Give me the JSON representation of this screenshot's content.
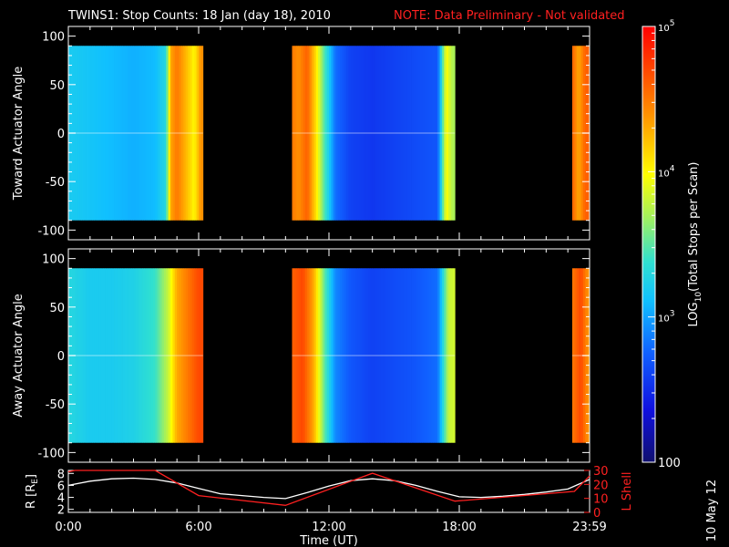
{
  "title": "TWINS1: Stop Counts: 18 Jan (day  18), 2010",
  "note": "NOTE: Data Preliminary - Not validated",
  "date_stamp": "10 May 12",
  "colors": {
    "background": "#000000",
    "axes": "#ffffff",
    "note": "#ff2020",
    "r_line": "#ffffff",
    "l_line": "#ff2020"
  },
  "chart_data": [
    {
      "type": "heatmap",
      "ylabel": "Toward Actuator Angle",
      "yticks": [
        "100",
        "50",
        "0",
        "-50",
        "-100"
      ],
      "ylim": [
        -110,
        110
      ],
      "angle_range": [
        -90,
        90
      ],
      "x_range_hours": [
        0,
        24
      ],
      "data_segments_hours": [
        [
          0.0,
          6.2
        ],
        [
          10.3,
          17.8
        ],
        [
          23.2,
          24.0
        ]
      ],
      "colorbar_scale": "log10",
      "time_profile": [
        {
          "t": 0.0,
          "log": 3.2
        },
        {
          "t": 1.0,
          "log": 3.15
        },
        {
          "t": 2.0,
          "log": 3.1
        },
        {
          "t": 3.0,
          "log": 3.05
        },
        {
          "t": 4.0,
          "log": 3.1
        },
        {
          "t": 4.5,
          "log": 3.3
        },
        {
          "t": 4.7,
          "log": 4.3
        },
        {
          "t": 5.0,
          "log": 4.5
        },
        {
          "t": 5.5,
          "log": 4.2
        },
        {
          "t": 5.8,
          "log": 4.0
        },
        {
          "t": 6.1,
          "log": 4.4
        },
        {
          "t": 10.3,
          "log": 4.5
        },
        {
          "t": 10.6,
          "log": 4.4
        },
        {
          "t": 11.0,
          "log": 4.6
        },
        {
          "t": 11.4,
          "log": 4.1
        },
        {
          "t": 11.7,
          "log": 3.6
        },
        {
          "t": 12.0,
          "log": 3.2
        },
        {
          "t": 12.3,
          "log": 2.8
        },
        {
          "t": 13.0,
          "log": 2.6
        },
        {
          "t": 14.0,
          "log": 2.55
        },
        {
          "t": 15.0,
          "log": 2.6
        },
        {
          "t": 16.0,
          "log": 2.65
        },
        {
          "t": 17.0,
          "log": 2.7
        },
        {
          "t": 17.4,
          "log": 4.0
        },
        {
          "t": 17.7,
          "log": 3.7
        },
        {
          "t": 23.2,
          "log": 4.6
        },
        {
          "t": 23.5,
          "log": 4.3
        },
        {
          "t": 23.8,
          "log": 4.6
        }
      ]
    },
    {
      "type": "heatmap",
      "ylabel": "Away Actuator Angle",
      "yticks": [
        "100",
        "50",
        "0",
        "-50",
        "-100"
      ],
      "ylim": [
        -110,
        110
      ],
      "angle_range": [
        -90,
        90
      ],
      "x_range_hours": [
        0,
        24
      ],
      "data_segments_hours": [
        [
          0.0,
          6.2
        ],
        [
          10.3,
          17.8
        ],
        [
          23.2,
          24.0
        ]
      ],
      "colorbar_scale": "log10",
      "time_profile": [
        {
          "t": 0.0,
          "log": 3.3
        },
        {
          "t": 1.0,
          "log": 3.2
        },
        {
          "t": 2.0,
          "log": 3.2
        },
        {
          "t": 3.0,
          "log": 3.25
        },
        {
          "t": 4.0,
          "log": 3.4
        },
        {
          "t": 4.6,
          "log": 3.8
        },
        {
          "t": 5.0,
          "log": 4.3
        },
        {
          "t": 5.5,
          "log": 4.5
        },
        {
          "t": 6.0,
          "log": 4.7
        },
        {
          "t": 10.3,
          "log": 4.6
        },
        {
          "t": 10.8,
          "log": 4.7
        },
        {
          "t": 11.3,
          "log": 4.3
        },
        {
          "t": 11.8,
          "log": 3.5
        },
        {
          "t": 12.3,
          "log": 2.9
        },
        {
          "t": 13.0,
          "log": 2.7
        },
        {
          "t": 14.0,
          "log": 2.6
        },
        {
          "t": 15.0,
          "log": 2.65
        },
        {
          "t": 16.0,
          "log": 2.7
        },
        {
          "t": 17.0,
          "log": 2.8
        },
        {
          "t": 17.5,
          "log": 3.8
        },
        {
          "t": 23.2,
          "log": 4.5
        },
        {
          "t": 23.6,
          "log": 4.7
        },
        {
          "t": 23.9,
          "log": 4.4
        }
      ]
    },
    {
      "type": "line",
      "xlabel": "Time (UT)",
      "xticks": [
        "0:00",
        "6:00",
        "12:00",
        "18:00",
        "23:59"
      ],
      "xlim_hours": [
        0,
        24
      ],
      "ylabel_left": "R [R",
      "ylabel_left_sub": "E",
      "ylabel_left_end": "]",
      "yticks_left": [
        "8",
        "6",
        "4",
        "2"
      ],
      "ylim_left": [
        1.5,
        8.5
      ],
      "ylabel_right": "L Shell",
      "yticks_right": [
        "30",
        "20",
        "10",
        "0"
      ],
      "ylim_right": [
        0,
        30
      ],
      "series": [
        {
          "name": "R",
          "axis": "left",
          "x": [
            0,
            1,
            2,
            3,
            4,
            5,
            6,
            7,
            8,
            9,
            10,
            11,
            12,
            13,
            14,
            15,
            16,
            17,
            18,
            19,
            20,
            21,
            22,
            23,
            24
          ],
          "y": [
            6.0,
            6.7,
            7.1,
            7.2,
            7.0,
            6.4,
            5.5,
            4.6,
            4.3,
            4.0,
            3.8,
            4.8,
            5.9,
            6.8,
            7.1,
            6.8,
            6.0,
            5.0,
            4.1,
            4.0,
            4.2,
            4.5,
            4.9,
            5.4,
            7.0
          ]
        },
        {
          "name": "L",
          "axis": "right",
          "x": [
            0,
            0.3,
            4.0,
            6.0,
            10.0,
            14.0,
            17.8,
            23.3,
            24.0
          ],
          "y": [
            29,
            30,
            30,
            12,
            5,
            28,
            8,
            15,
            26
          ]
        }
      ]
    }
  ],
  "colorbar": {
    "label_main": "LOG",
    "label_sub": "10",
    "label_rest": "(Total Stops per Scan)",
    "range_log": [
      2,
      5
    ],
    "ticks": [
      {
        "value": 5,
        "base": "10",
        "exp": "5"
      },
      {
        "value": 4,
        "base": "10",
        "exp": "4"
      },
      {
        "value": 3,
        "base": "10",
        "exp": "3"
      },
      {
        "value": 2,
        "label": "100"
      }
    ]
  }
}
